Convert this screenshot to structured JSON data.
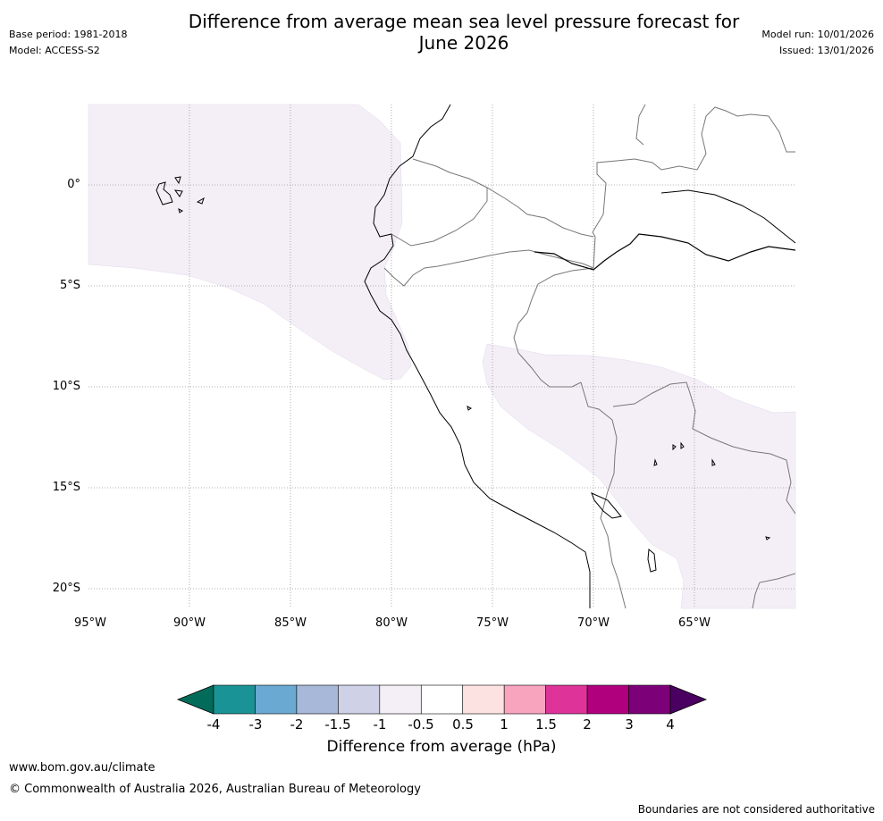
{
  "header": {
    "title_line1": "Difference from average mean sea level pressure forecast for",
    "title_line2": "June 2026",
    "base_period": "Base period: 1981-2018",
    "model": "Model: ACCESS-S2",
    "model_run": "Model run: 10/01/2026",
    "issued": "Issued: 13/01/2026"
  },
  "map": {
    "lat_labels": [
      "0°",
      "5°S",
      "10°S",
      "15°S",
      "20°S"
    ],
    "lon_labels": [
      "95°W",
      "90°W",
      "85°W",
      "80°W",
      "75°W",
      "70°W",
      "65°W"
    ]
  },
  "colorbar": {
    "tick_labels": [
      "-4",
      "-3",
      "-2",
      "-1.5",
      "-1",
      "-0.5",
      "0.5",
      "1",
      "1.5",
      "2",
      "3",
      "4"
    ],
    "colors": [
      "#1a9396",
      "#6aa9d2",
      "#a7b8d8",
      "#cfd1e6",
      "#f4eff7",
      "#ffffff",
      "#fde2e2",
      "#f9a4bf",
      "#de349a",
      "#b1007e",
      "#7c0078"
    ],
    "low_extend_color": "#036b5a",
    "high_extend_color": "#4a0060",
    "label": "Difference from average (hPa)"
  },
  "footer": {
    "url": "www.bom.gov.au/climate",
    "copyright": "© Commonwealth of Australia 2026, Australian Bureau of Meteorology",
    "note": "Boundaries are not considered authoritative"
  }
}
